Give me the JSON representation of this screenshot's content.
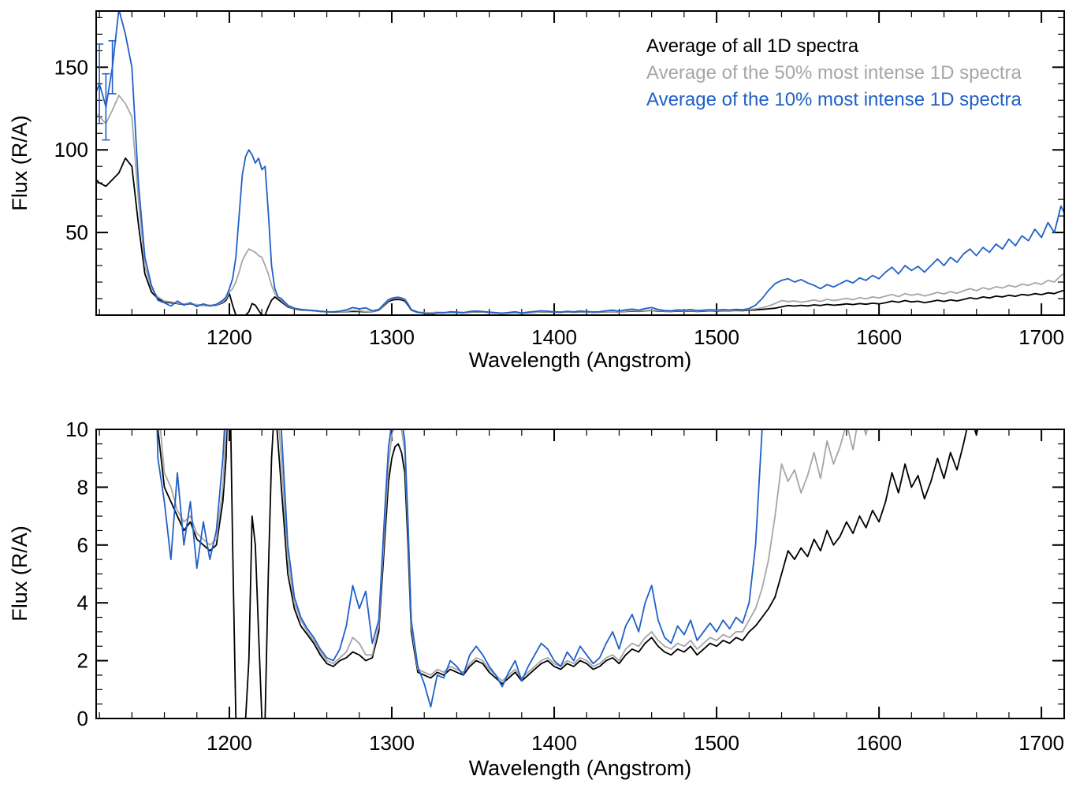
{
  "figure": {
    "background": "#ffffff",
    "axis_color": "#000000"
  },
  "chart_data": {
    "type": "line",
    "title": "",
    "xlabel": "Wavelength (Angstrom)",
    "ylabel": "Flux (R/A)",
    "xlim": [
      1118,
      1714
    ],
    "x_ticks": [
      1200,
      1300,
      1400,
      1500,
      1600,
      1700
    ],
    "x_minor_tick": 20,
    "legend_position": "top-right-inside",
    "panels": [
      {
        "name": "full-range",
        "ylim": [
          0,
          184
        ],
        "y_ticks": [
          50,
          100,
          150
        ],
        "y_minor_tick": 10,
        "show_legend": true,
        "show_error_bars": true
      },
      {
        "name": "zoomed",
        "ylim": [
          0,
          10
        ],
        "y_ticks": [
          0,
          2,
          4,
          6,
          8,
          10
        ],
        "y_minor_tick": 0.5,
        "show_legend": false,
        "show_error_bars": false
      }
    ],
    "series": [
      {
        "name": "Average of all 1D spectra",
        "color": "#000000"
      },
      {
        "name": "Average of the 50% most intense 1D spectra",
        "color": "#a6a6a6"
      },
      {
        "name": "Average of the 10% most intense 1D spectra",
        "color": "#2060c8"
      }
    ],
    "blue_error_bars": [
      {
        "x": 1120,
        "y": 140,
        "err": 24
      },
      {
        "x": 1124,
        "y": 126,
        "err": 20
      },
      {
        "x": 1128,
        "y": 150,
        "err": 16
      }
    ],
    "points_format": [
      "wavelength_angstrom",
      "flux_all",
      "flux_top50",
      "flux_top10"
    ],
    "points": [
      [
        1118,
        82,
        122,
        135
      ],
      [
        1120,
        80,
        120,
        140
      ],
      [
        1124,
        78,
        116,
        126
      ],
      [
        1128,
        82,
        124,
        150
      ],
      [
        1132,
        86,
        133,
        185
      ],
      [
        1136,
        95,
        128,
        170
      ],
      [
        1140,
        90,
        120,
        150
      ],
      [
        1144,
        55,
        70,
        80
      ],
      [
        1148,
        25,
        30,
        35
      ],
      [
        1152,
        14,
        16,
        18
      ],
      [
        1156,
        10,
        11,
        9
      ],
      [
        1160,
        8,
        8.5,
        7.5
      ],
      [
        1164,
        7.5,
        8,
        5.5
      ],
      [
        1168,
        7,
        7.2,
        8.5
      ],
      [
        1172,
        6.5,
        6.8,
        6
      ],
      [
        1176,
        6.8,
        7,
        7.5
      ],
      [
        1180,
        6.2,
        6.4,
        5.2
      ],
      [
        1184,
        6,
        6.2,
        6.8
      ],
      [
        1188,
        5.8,
        6,
        5.5
      ],
      [
        1192,
        6,
        6.2,
        6.5
      ],
      [
        1196,
        7.5,
        8,
        9
      ],
      [
        1198,
        9,
        10,
        11
      ],
      [
        1200,
        13,
        14,
        16
      ],
      [
        1202,
        6,
        16,
        22
      ],
      [
        1204,
        0,
        20,
        35
      ],
      [
        1206,
        0,
        26,
        60
      ],
      [
        1208,
        0,
        33,
        85
      ],
      [
        1210,
        0,
        37,
        96
      ],
      [
        1212,
        2,
        40,
        100
      ],
      [
        1214,
        7,
        39,
        97
      ],
      [
        1216,
        6,
        38,
        92
      ],
      [
        1218,
        3,
        36,
        95
      ],
      [
        1220,
        0,
        35,
        88
      ],
      [
        1222,
        0,
        30,
        90
      ],
      [
        1224,
        5,
        25,
        62
      ],
      [
        1226,
        9,
        18,
        30
      ],
      [
        1228,
        11,
        13,
        16
      ],
      [
        1230,
        9.5,
        10.5,
        11
      ],
      [
        1232,
        8,
        9,
        10
      ],
      [
        1236,
        5,
        5.5,
        6
      ],
      [
        1240,
        3.8,
        4,
        4.2
      ],
      [
        1244,
        3.2,
        3.4,
        3.5
      ],
      [
        1248,
        2.9,
        3,
        3.1
      ],
      [
        1252,
        2.6,
        2.7,
        2.8
      ],
      [
        1256,
        2.2,
        2.3,
        2.4
      ],
      [
        1260,
        1.9,
        2,
        2.1
      ],
      [
        1264,
        1.8,
        1.9,
        2
      ],
      [
        1268,
        2,
        2.1,
        2.4
      ],
      [
        1272,
        2.1,
        2.3,
        3.2
      ],
      [
        1276,
        2.3,
        2.8,
        4.6
      ],
      [
        1280,
        2.2,
        2.6,
        3.8
      ],
      [
        1284,
        2,
        2.2,
        4.4
      ],
      [
        1288,
        2.1,
        2.2,
        2.6
      ],
      [
        1292,
        3,
        3.2,
        3.4
      ],
      [
        1296,
        6.5,
        7,
        7.5
      ],
      [
        1298,
        8.2,
        8.8,
        9.4
      ],
      [
        1300,
        9,
        9.8,
        10.2
      ],
      [
        1302,
        9.4,
        10.2,
        10.7
      ],
      [
        1304,
        9.5,
        10.3,
        10.8
      ],
      [
        1306,
        9.2,
        10,
        10.4
      ],
      [
        1308,
        8.5,
        9.2,
        9.6
      ],
      [
        1310,
        6,
        6.5,
        6.8
      ],
      [
        1312,
        3,
        3.2,
        3.4
      ],
      [
        1316,
        1.6,
        1.7,
        1.8
      ],
      [
        1320,
        1.5,
        1.6,
        1.2
      ],
      [
        1324,
        1.4,
        1.5,
        0.4
      ],
      [
        1328,
        1.6,
        1.7,
        1.5
      ],
      [
        1332,
        1.5,
        1.6,
        1.4
      ],
      [
        1336,
        1.7,
        1.8,
        2
      ],
      [
        1340,
        1.6,
        1.7,
        1.8
      ],
      [
        1344,
        1.5,
        1.6,
        1.5
      ],
      [
        1348,
        1.8,
        1.9,
        2.2
      ],
      [
        1352,
        2,
        2.1,
        2.5
      ],
      [
        1356,
        1.9,
        2,
        2.2
      ],
      [
        1360,
        1.6,
        1.7,
        1.8
      ],
      [
        1364,
        1.4,
        1.5,
        1.5
      ],
      [
        1368,
        1.2,
        1.3,
        1.1
      ],
      [
        1372,
        1.4,
        1.5,
        1.6
      ],
      [
        1376,
        1.6,
        1.7,
        2
      ],
      [
        1380,
        1.3,
        1.4,
        1.3
      ],
      [
        1384,
        1.5,
        1.6,
        1.8
      ],
      [
        1388,
        1.7,
        1.8,
        2.2
      ],
      [
        1392,
        1.9,
        2,
        2.6
      ],
      [
        1396,
        2,
        2.1,
        2.4
      ],
      [
        1400,
        1.8,
        1.9,
        2
      ],
      [
        1404,
        1.7,
        1.8,
        1.8
      ],
      [
        1408,
        1.9,
        2,
        2.3
      ],
      [
        1412,
        1.8,
        1.9,
        2
      ],
      [
        1416,
        2,
        2.1,
        2.5
      ],
      [
        1420,
        1.9,
        2,
        2.2
      ],
      [
        1424,
        1.7,
        1.8,
        1.9
      ],
      [
        1428,
        1.8,
        1.9,
        2.1
      ],
      [
        1432,
        2,
        2.1,
        2.6
      ],
      [
        1436,
        2.1,
        2.2,
        3
      ],
      [
        1440,
        1.9,
        2,
        2.4
      ],
      [
        1444,
        2.2,
        2.4,
        3.2
      ],
      [
        1448,
        2.4,
        2.6,
        3.6
      ],
      [
        1452,
        2.3,
        2.5,
        3
      ],
      [
        1456,
        2.6,
        2.8,
        4
      ],
      [
        1460,
        2.8,
        3,
        4.6
      ],
      [
        1464,
        2.5,
        2.7,
        3.4
      ],
      [
        1468,
        2.3,
        2.5,
        2.8
      ],
      [
        1472,
        2.2,
        2.4,
        2.6
      ],
      [
        1476,
        2.4,
        2.6,
        3.2
      ],
      [
        1480,
        2.3,
        2.5,
        2.9
      ],
      [
        1484,
        2.5,
        2.7,
        3.4
      ],
      [
        1488,
        2.2,
        2.4,
        2.7
      ],
      [
        1492,
        2.4,
        2.6,
        3
      ],
      [
        1496,
        2.6,
        2.8,
        3.3
      ],
      [
        1500,
        2.5,
        2.7,
        3
      ],
      [
        1504,
        2.7,
        2.9,
        3.4
      ],
      [
        1508,
        2.6,
        2.8,
        3.1
      ],
      [
        1512,
        2.8,
        3,
        3.5
      ],
      [
        1516,
        2.7,
        3,
        3.3
      ],
      [
        1520,
        3,
        3.4,
        4
      ],
      [
        1524,
        3.2,
        3.8,
        6
      ],
      [
        1528,
        3.5,
        4.5,
        10
      ],
      [
        1532,
        3.8,
        5.5,
        15
      ],
      [
        1536,
        4.2,
        7,
        19
      ],
      [
        1540,
        5,
        8.8,
        21
      ],
      [
        1544,
        5.8,
        8.2,
        22
      ],
      [
        1548,
        5.5,
        8.6,
        20
      ],
      [
        1552,
        5.9,
        7.8,
        21.5
      ],
      [
        1556,
        5.6,
        8.4,
        19.5
      ],
      [
        1560,
        6.2,
        9.2,
        18
      ],
      [
        1564,
        5.8,
        8.3,
        16
      ],
      [
        1568,
        6.5,
        9.6,
        18.5
      ],
      [
        1572,
        6,
        8.8,
        17
      ],
      [
        1576,
        6.3,
        9.4,
        19
      ],
      [
        1580,
        6.8,
        10.2,
        21
      ],
      [
        1584,
        6.4,
        9.3,
        19.5
      ],
      [
        1588,
        7,
        10.6,
        22.5
      ],
      [
        1592,
        6.6,
        9.8,
        21
      ],
      [
        1596,
        7.2,
        11,
        24
      ],
      [
        1600,
        6.8,
        10.4,
        22
      ],
      [
        1604,
        7.5,
        11.5,
        26
      ],
      [
        1608,
        8.5,
        12.5,
        29
      ],
      [
        1612,
        7.8,
        11.2,
        25
      ],
      [
        1616,
        8.8,
        13,
        30
      ],
      [
        1620,
        8,
        12,
        27
      ],
      [
        1624,
        8.4,
        12.8,
        29.5
      ],
      [
        1628,
        7.6,
        11.6,
        26
      ],
      [
        1632,
        8.2,
        12.6,
        30
      ],
      [
        1636,
        9,
        13.8,
        34
      ],
      [
        1640,
        8.3,
        12.8,
        30
      ],
      [
        1644,
        9.2,
        14.2,
        35
      ],
      [
        1648,
        8.6,
        13.2,
        32
      ],
      [
        1652,
        9.5,
        14.8,
        37
      ],
      [
        1656,
        10.5,
        16,
        40
      ],
      [
        1660,
        9.8,
        14.8,
        36
      ],
      [
        1664,
        11,
        16.6,
        41
      ],
      [
        1668,
        10.4,
        15.6,
        38
      ],
      [
        1672,
        11.5,
        17.2,
        43
      ],
      [
        1676,
        11,
        16.4,
        40
      ],
      [
        1680,
        12,
        18,
        46
      ],
      [
        1684,
        11.4,
        17,
        42
      ],
      [
        1688,
        12.5,
        18.8,
        48
      ],
      [
        1692,
        12,
        18,
        45
      ],
      [
        1696,
        13,
        19.6,
        52
      ],
      [
        1700,
        12.4,
        18.6,
        47
      ],
      [
        1704,
        13.5,
        21,
        56
      ],
      [
        1708,
        13,
        20,
        50
      ],
      [
        1712,
        14.5,
        24,
        66
      ],
      [
        1716,
        15.5,
        26,
        58
      ]
    ]
  }
}
